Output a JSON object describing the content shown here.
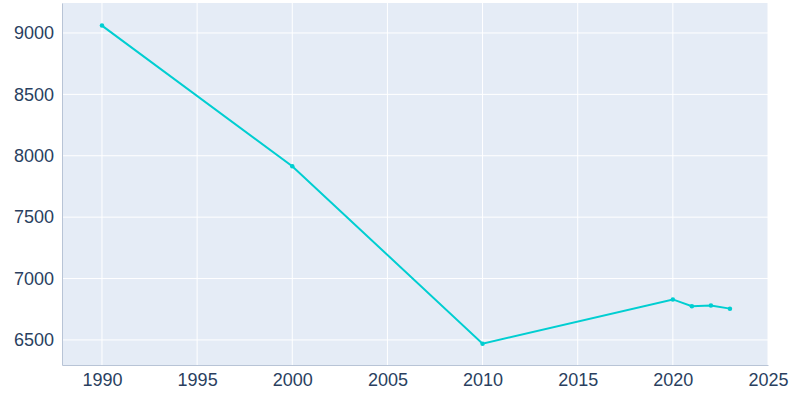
{
  "chart_data": {
    "type": "line",
    "x": [
      1990,
      2000,
      2010,
      2020,
      2021,
      2022,
      2023
    ],
    "values": [
      9060,
      7915,
      6470,
      6830,
      6775,
      6780,
      6755
    ],
    "color": "#00ced1",
    "marker": "circle",
    "xlim": [
      1987.9,
      2025
    ],
    "xticks": [
      1990,
      1995,
      2000,
      2005,
      2010,
      2015,
      2020,
      2025
    ],
    "ylim": [
      6296,
      9244
    ],
    "yticks": [
      6500,
      7000,
      7500,
      8000,
      8500,
      9000
    ],
    "grid": true
  }
}
